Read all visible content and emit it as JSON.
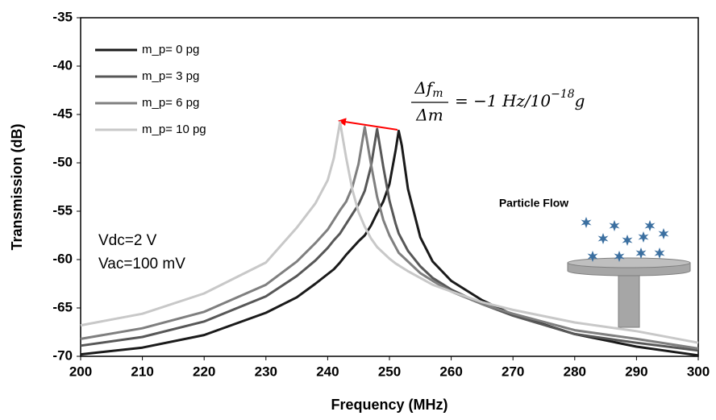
{
  "chart_data": {
    "type": "line",
    "x_label": "Frequency (MHz)",
    "y_label": "Transmission (dB)",
    "x": [
      200,
      210,
      220,
      230,
      235,
      238,
      240,
      241,
      242,
      243,
      244,
      245,
      246,
      247,
      248,
      249,
      250,
      251,
      251.5,
      252,
      253,
      255,
      257,
      260,
      265,
      270,
      280,
      290,
      300
    ],
    "series": [
      {
        "name": "m_p= 0 pg",
        "color": "#1a1a1a",
        "values": [
          -69.8,
          -69.1,
          -67.8,
          -65.5,
          -63.9,
          -62.5,
          -61.5,
          -61.0,
          -60.3,
          -59.5,
          -58.8,
          -58.1,
          -57.5,
          -56.5,
          -55.2,
          -54.0,
          -52.2,
          -48.7,
          -46.7,
          -48.2,
          -52.7,
          -57.7,
          -60.2,
          -62.2,
          -64.2,
          -65.7,
          -67.7,
          -69.0,
          -69.9
        ]
      },
      {
        "name": "m_p= 3 pg",
        "color": "#575757",
        "values": [
          -68.9,
          -68.0,
          -66.4,
          -63.8,
          -61.7,
          -60.1,
          -58.8,
          -58.0,
          -57.3,
          -56.3,
          -55.3,
          -54.3,
          -52.9,
          -50.4,
          -46.5,
          -50.4,
          -53.9,
          -56.3,
          -57.3,
          -57.9,
          -59.1,
          -60.7,
          -61.9,
          -63.1,
          -64.6,
          -65.8,
          -67.7,
          -68.6,
          -69.4
        ]
      },
      {
        "name": "m_p= 6 pg",
        "color": "#7f7f7f",
        "values": [
          -68.2,
          -67.1,
          -65.4,
          -62.6,
          -60.2,
          -58.3,
          -56.9,
          -55.9,
          -54.9,
          -54.0,
          -52.5,
          -50.1,
          -46.3,
          -50.1,
          -53.5,
          -55.9,
          -57.5,
          -58.7,
          -59.3,
          -59.6,
          -60.2,
          -61.4,
          -62.2,
          -63.3,
          -64.6,
          -65.6,
          -67.3,
          -68.2,
          -69.2
        ]
      },
      {
        "name": "m_p= 10 pg",
        "color": "#c8c8c8",
        "values": [
          -66.8,
          -65.6,
          -63.5,
          -60.3,
          -56.7,
          -54.2,
          -51.8,
          -49.5,
          -45.8,
          -49.5,
          -52.8,
          -55.1,
          -56.6,
          -57.8,
          -58.7,
          -59.3,
          -59.9,
          -60.4,
          -60.6,
          -60.8,
          -61.2,
          -61.9,
          -62.6,
          -63.3,
          -64.4,
          -65.2,
          -66.5,
          -67.4,
          -68.6
        ]
      }
    ],
    "xlim": [
      200,
      300
    ],
    "xticks": [
      200,
      210,
      220,
      230,
      240,
      250,
      260,
      270,
      280,
      290,
      300
    ],
    "ylim": [
      -70,
      -35
    ],
    "yticks": [
      -70,
      -65,
      -60,
      -55,
      -50,
      -45,
      -40,
      -35
    ],
    "grid": false,
    "legend": "upper left",
    "annotations": {
      "conditions": [
        "Vdc=2 V",
        "Vac=100 mV"
      ],
      "particle_label": "Particle Flow",
      "formula": {
        "numerator": "Δf",
        "numerator_sub": "m",
        "denominator": "Δm",
        "rhs": "= −1 Hz/10",
        "exponent": "−18",
        "unit": "g"
      }
    }
  }
}
